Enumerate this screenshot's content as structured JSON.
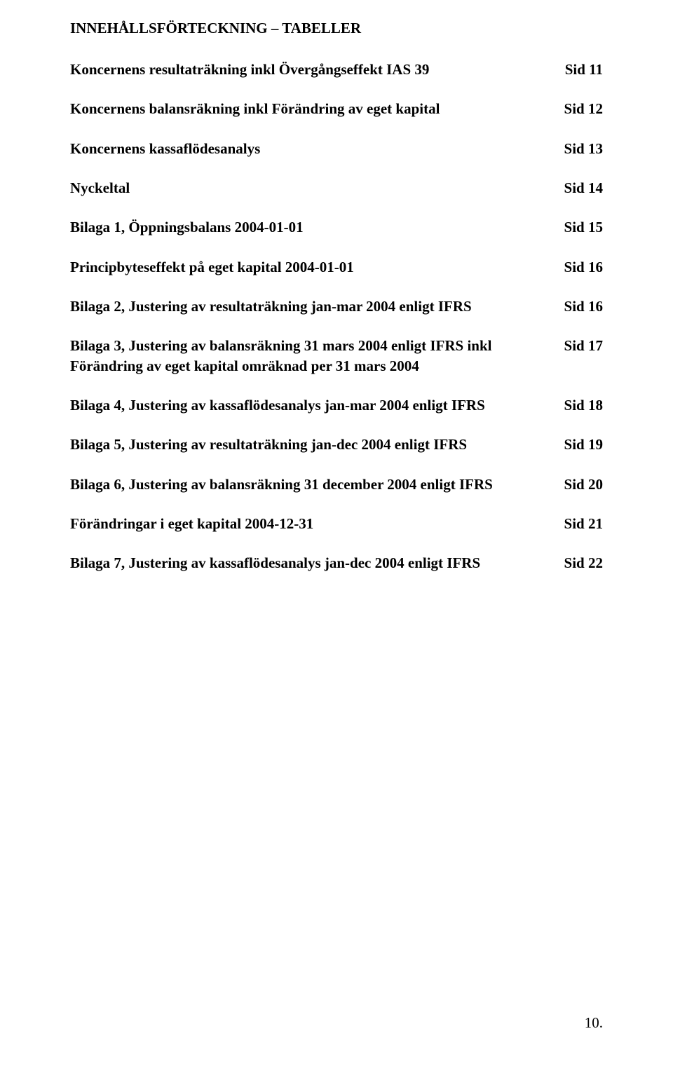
{
  "title": "INNEHÅLLSFÖRTECKNING – TABELLER",
  "toc": [
    {
      "label": "Koncernens resultaträkning inkl Övergångseffekt IAS 39",
      "page": "Sid 11"
    },
    {
      "label": "Koncernens balansräkning inkl Förändring av eget kapital",
      "page": "Sid 12"
    },
    {
      "label": "Koncernens kassaflödesanalys",
      "page": "Sid 13"
    },
    {
      "label": "Nyckeltal",
      "page": "Sid 14"
    },
    {
      "label": "Bilaga 1, Öppningsbalans 2004-01-01",
      "page": "Sid 15"
    },
    {
      "label": "Principbyteseffekt på eget kapital 2004-01-01",
      "page": "Sid 16"
    },
    {
      "label": "Bilaga 2, Justering av resultaträkning jan-mar 2004 enligt IFRS",
      "page": "Sid 16"
    },
    {
      "label": "Bilaga 3, Justering av balansräkning 31 mars 2004 enligt IFRS inkl Förändring av eget kapital omräknad per 31 mars 2004",
      "page": "Sid 17"
    },
    {
      "label": "Bilaga 4, Justering av kassaflödesanalys jan-mar 2004 enligt IFRS",
      "page": "Sid 18"
    },
    {
      "label": "Bilaga 5, Justering av resultaträkning jan-dec 2004 enligt IFRS",
      "page": "Sid 19"
    },
    {
      "label": "Bilaga 6, Justering av balansräkning 31 december 2004 enligt IFRS",
      "page": "Sid 20"
    },
    {
      "label": "Förändringar i eget kapital 2004-12-31",
      "page": "Sid 21"
    },
    {
      "label": "Bilaga 7, Justering av kassaflödesanalys jan-dec 2004 enligt IFRS",
      "page": "Sid 22"
    }
  ],
  "page_number": "10."
}
